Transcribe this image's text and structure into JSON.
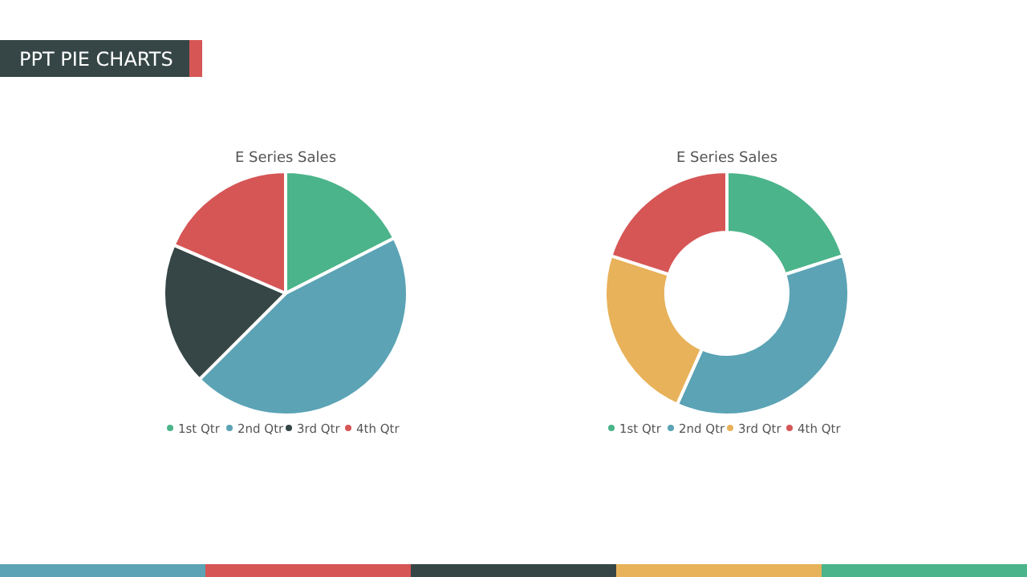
{
  "chart_data": [
    {
      "type": "other",
      "title": "PPT PIE CHARTS"
    },
    {
      "type": "pie",
      "title": "E Series Sales",
      "categories": [
        "1st Qtr",
        "2nd Qtr",
        "3rd Qtr",
        "4th Qtr"
      ],
      "values": [
        17.5,
        45,
        19,
        18.5
      ],
      "colors": [
        "#4bb48a",
        "#5ba3b5",
        "#364646",
        "#d65656"
      ],
      "legend": "bottom"
    },
    {
      "type": "donut",
      "title": "E Series Sales",
      "categories": [
        "1st Qtr",
        "2nd Qtr",
        "3rd Qtr",
        "4th Qtr"
      ],
      "values": [
        20,
        36.7,
        23.3,
        20
      ],
      "colors": [
        "#4bb48a",
        "#5ba3b5",
        "#e8b25a",
        "#d65656"
      ],
      "legend": "bottom"
    }
  ]
}
